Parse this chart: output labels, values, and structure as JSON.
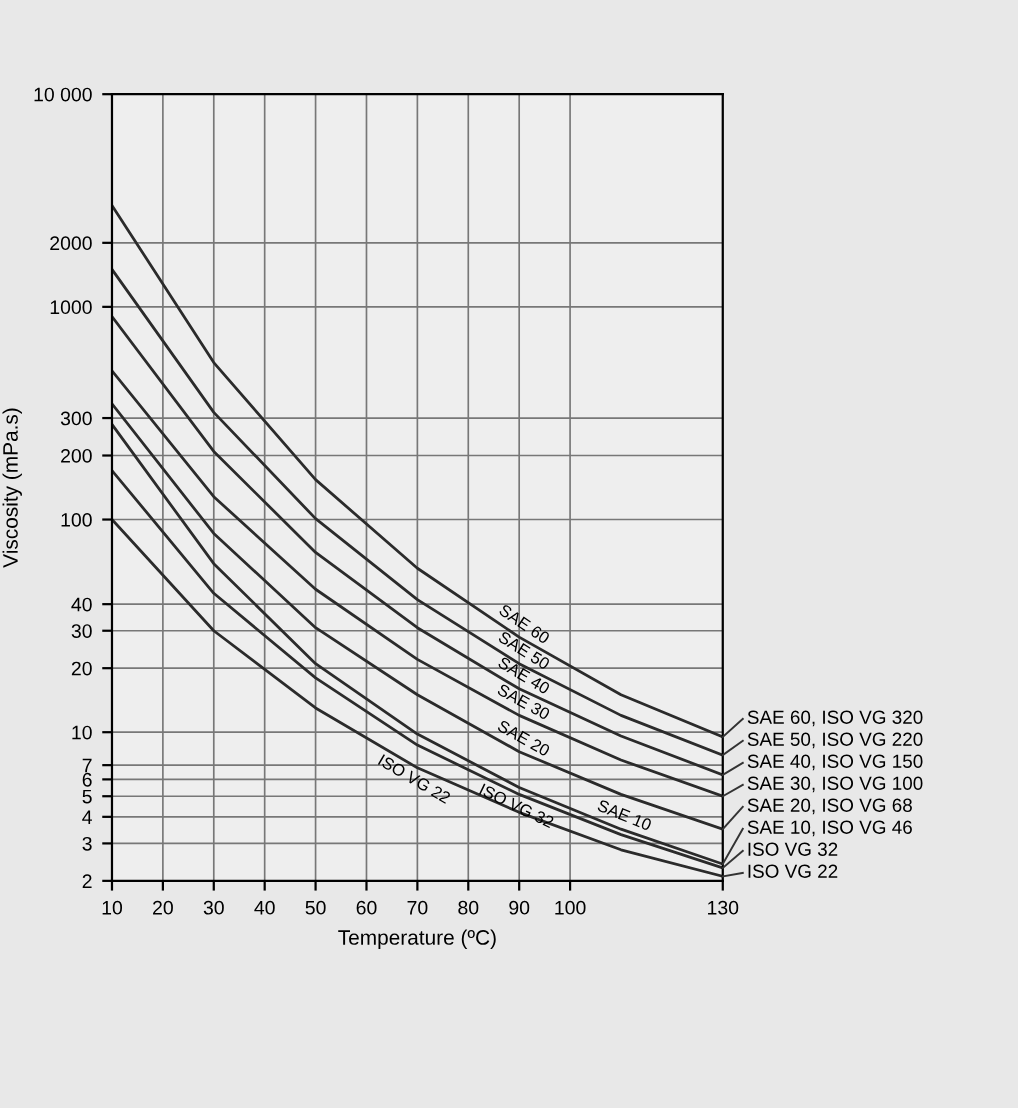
{
  "chart_data": {
    "type": "line",
    "xlabel": "Temperature (ºC)",
    "ylabel": "Viscosity (mPa.s)",
    "x": [
      10,
      30,
      50,
      70,
      90,
      110,
      130
    ],
    "series": [
      {
        "name": "SAE 60, ISO VG 320",
        "color": "#2b2b2b",
        "values": [
          3000,
          547,
          154,
          59,
          28,
          15,
          9.5
        ]
      },
      {
        "name": "SAE 50, ISO VG 220",
        "color": "#2b2b2b",
        "values": [
          1500,
          319,
          101,
          42,
          21,
          12,
          7.8
        ]
      },
      {
        "name": "SAE 40, ISO VG 150",
        "color": "#2b2b2b",
        "values": [
          900,
          209,
          70,
          31,
          16,
          9.6,
          6.3
        ]
      },
      {
        "name": "SAE 30, ISO VG 100",
        "color": "#2b2b2b",
        "values": [
          500,
          128,
          47,
          22,
          12,
          7.4,
          5
        ]
      },
      {
        "name": "SAE 20, ISO VG 68",
        "color": "#2b2b2b",
        "values": [
          350,
          86,
          31,
          15,
          8.1,
          5.1,
          3.5
        ]
      },
      {
        "name": "SAE 10, ISO VG 46",
        "color": "#2b2b2b",
        "values": [
          280,
          62,
          21,
          9.8,
          5.5,
          3.5,
          2.4
        ]
      },
      {
        "name": "ISO VG 32",
        "color": "#2b2b2b",
        "values": [
          170,
          45,
          18,
          8.7,
          5.1,
          3.3,
          2.3
        ]
      },
      {
        "name": "ISO VG 22",
        "color": "#2b2b2b",
        "values": [
          100,
          30,
          13,
          6.8,
          4.2,
          2.8,
          2.1
        ]
      }
    ],
    "annotations": [
      {
        "text": "SAE 60",
        "x": 90,
        "y": 28
      },
      {
        "text": "SAE 50",
        "x": 90,
        "y": 21
      },
      {
        "text": "SAE 40",
        "x": 90,
        "y": 16
      },
      {
        "text": "SAE 30",
        "x": 90,
        "y": 12
      },
      {
        "text": "SAE 20",
        "x": 90,
        "y": 8.1
      },
      {
        "text": "SAE 10",
        "x": 110,
        "y": 3.5
      },
      {
        "text": "ISO VG 32",
        "x": 90,
        "y": 5.1
      },
      {
        "text": "ISO VG 22",
        "x": 70,
        "y": 6.8
      }
    ],
    "xlim": [
      10,
      130
    ],
    "xticks": [
      10,
      20,
      30,
      40,
      50,
      60,
      70,
      80,
      90,
      100,
      130
    ],
    "ylim": [
      2,
      10000
    ],
    "log": "y",
    "yticks": [
      2,
      3,
      4,
      5,
      6,
      7,
      10,
      20,
      30,
      40,
      100,
      200,
      300,
      1000,
      2000,
      {
        "value": 10000,
        "label": "10 000"
      }
    ],
    "grid": true,
    "legend": "right",
    "marker": "none",
    "line_style": "solid"
  }
}
